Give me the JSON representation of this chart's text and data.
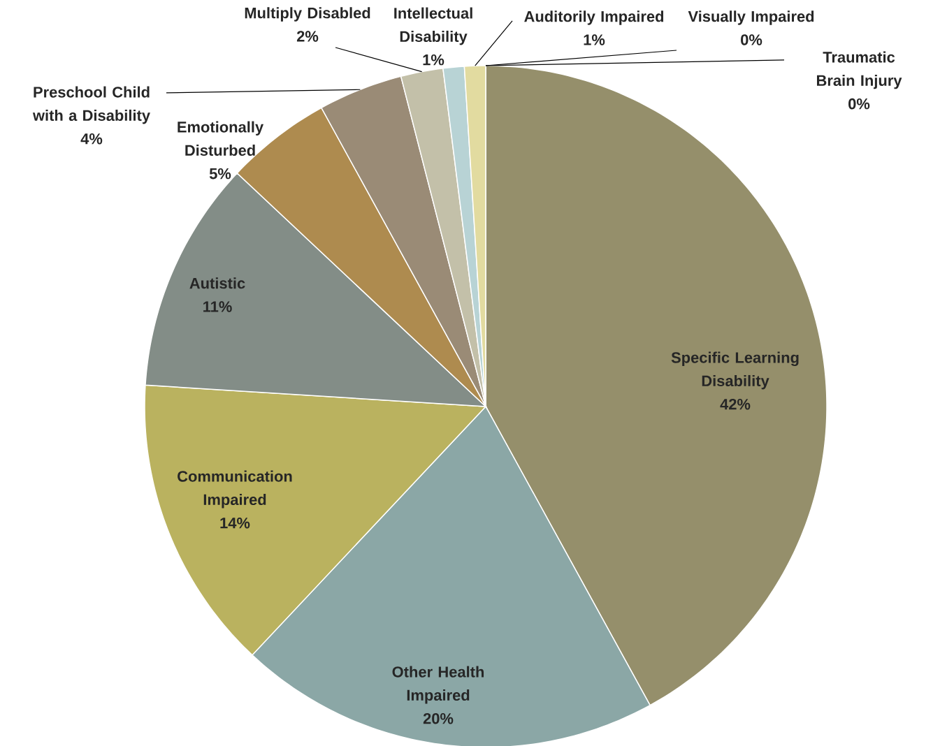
{
  "chart_data": {
    "type": "pie",
    "categories": [
      "Specific Learning Disability",
      "Other Health Impaired",
      "Communication Impaired",
      "Autistic",
      "Emotionally Disturbed",
      "Preschool Child with a Disability",
      "Multiply Disabled",
      "Intellectual Disability",
      "Auditorily Impaired",
      "Visually Impaired",
      "Traumatic Brain Injury"
    ],
    "values": [
      42,
      20,
      14,
      11,
      5,
      4,
      2,
      1,
      1,
      0,
      0
    ],
    "value_labels": [
      "42%",
      "20%",
      "14%",
      "11%",
      "5%",
      "4%",
      "2%",
      "1%",
      "1%",
      "0%",
      "0%"
    ],
    "colors": [
      "#958f6b",
      "#8ba7a6",
      "#bab25f",
      "#838d87",
      "#ae8b4f",
      "#9a8b76",
      "#c3c0a9",
      "#b8d3d5",
      "#e2dba0",
      "#b0aba0",
      "#c7b4a0"
    ]
  }
}
